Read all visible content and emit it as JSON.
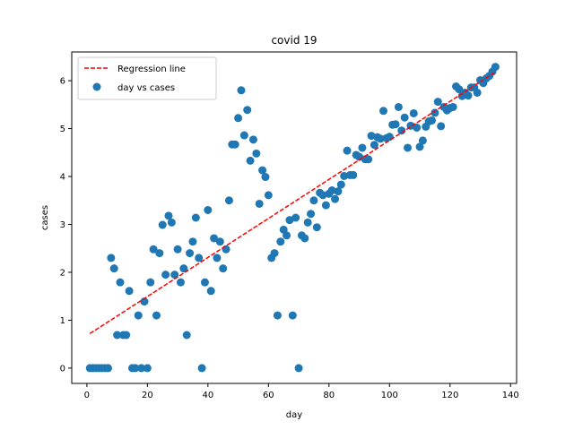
{
  "chart_data": {
    "type": "scatter",
    "title": "covid 19",
    "xlabel": "day",
    "ylabel": "cases",
    "xlim": [
      -5,
      142
    ],
    "ylim": [
      -0.32,
      6.6
    ],
    "xticks": [
      0,
      20,
      40,
      60,
      80,
      100,
      120,
      140
    ],
    "yticks": [
      0,
      1,
      2,
      3,
      4,
      5,
      6
    ],
    "grid": false,
    "legend": {
      "placement": "top-left",
      "entries": [
        "Regression line",
        "day vs cases"
      ]
    },
    "colors": {
      "points": "#1f77b4",
      "regression": "#ff0000"
    },
    "regression_line": {
      "name": "Regression line",
      "style": "dashed",
      "x": [
        1,
        135
      ],
      "y": [
        0.72,
        6.18
      ]
    },
    "series": [
      {
        "name": "day vs cases",
        "points": [
          [
            1,
            0
          ],
          [
            2,
            0
          ],
          [
            3,
            0
          ],
          [
            4,
            0
          ],
          [
            5,
            0
          ],
          [
            6,
            0
          ],
          [
            7,
            0
          ],
          [
            8,
            2.3
          ],
          [
            9,
            2.08
          ],
          [
            10,
            0.69
          ],
          [
            11,
            1.79
          ],
          [
            12,
            0.69
          ],
          [
            13,
            0.69
          ],
          [
            14,
            1.61
          ],
          [
            15,
            0
          ],
          [
            16,
            0
          ],
          [
            17,
            1.1
          ],
          [
            18,
            0
          ],
          [
            19,
            1.39
          ],
          [
            20,
            0
          ],
          [
            21,
            1.79
          ],
          [
            22,
            2.48
          ],
          [
            23,
            1.1
          ],
          [
            24,
            2.4
          ],
          [
            25,
            2.99
          ],
          [
            26,
            1.95
          ],
          [
            27,
            3.18
          ],
          [
            28,
            3.04
          ],
          [
            29,
            1.95
          ],
          [
            30,
            2.48
          ],
          [
            31,
            1.79
          ],
          [
            32,
            2.08
          ],
          [
            33,
            0.69
          ],
          [
            34,
            2.4
          ],
          [
            35,
            2.64
          ],
          [
            36,
            3.14
          ],
          [
            37,
            2.3
          ],
          [
            38,
            0
          ],
          [
            39,
            1.79
          ],
          [
            40,
            3.3
          ],
          [
            41,
            1.61
          ],
          [
            42,
            2.71
          ],
          [
            43,
            2.3
          ],
          [
            44,
            2.64
          ],
          [
            45,
            2.08
          ],
          [
            46,
            2.48
          ],
          [
            47,
            3.5
          ],
          [
            48,
            4.67
          ],
          [
            49,
            4.67
          ],
          [
            50,
            5.22
          ],
          [
            51,
            5.8
          ],
          [
            52,
            4.86
          ],
          [
            53,
            5.39
          ],
          [
            54,
            4.33
          ],
          [
            55,
            4.77
          ],
          [
            56,
            4.48
          ],
          [
            57,
            3.43
          ],
          [
            58,
            4.13
          ],
          [
            59,
            3.99
          ],
          [
            60,
            3.61
          ],
          [
            61,
            2.3
          ],
          [
            62,
            2.4
          ],
          [
            63,
            1.1
          ],
          [
            64,
            2.64
          ],
          [
            65,
            2.89
          ],
          [
            66,
            2.77
          ],
          [
            67,
            3.09
          ],
          [
            68,
            1.1
          ],
          [
            69,
            3.14
          ],
          [
            70,
            0
          ],
          [
            71,
            2.77
          ],
          [
            72,
            2.71
          ],
          [
            73,
            3.04
          ],
          [
            74,
            3.22
          ],
          [
            75,
            3.5
          ],
          [
            76,
            2.94
          ],
          [
            77,
            3.66
          ],
          [
            78,
            3.61
          ],
          [
            79,
            3.4
          ],
          [
            80,
            3.64
          ],
          [
            81,
            3.71
          ],
          [
            82,
            3.53
          ],
          [
            83,
            3.69
          ],
          [
            84,
            3.83
          ],
          [
            85,
            4.01
          ],
          [
            86,
            4.54
          ],
          [
            87,
            4.03
          ],
          [
            88,
            4.03
          ],
          [
            89,
            4.45
          ],
          [
            90,
            4.41
          ],
          [
            91,
            4.6
          ],
          [
            92,
            4.36
          ],
          [
            93,
            4.36
          ],
          [
            94,
            4.85
          ],
          [
            95,
            4.66
          ],
          [
            96,
            4.82
          ],
          [
            97,
            4.79
          ],
          [
            98,
            5.37
          ],
          [
            99,
            4.8
          ],
          [
            100,
            4.83
          ],
          [
            101,
            5.08
          ],
          [
            102,
            5.09
          ],
          [
            103,
            5.45
          ],
          [
            104,
            4.96
          ],
          [
            105,
            5.23
          ],
          [
            106,
            4.6
          ],
          [
            107,
            5.06
          ],
          [
            108,
            5.32
          ],
          [
            109,
            5.02
          ],
          [
            110,
            4.62
          ],
          [
            111,
            4.75
          ],
          [
            112,
            5.04
          ],
          [
            113,
            5.15
          ],
          [
            114,
            5.17
          ],
          [
            115,
            5.33
          ],
          [
            116,
            5.56
          ],
          [
            117,
            5.05
          ],
          [
            118,
            5.45
          ],
          [
            119,
            5.38
          ],
          [
            120,
            5.43
          ],
          [
            121,
            5.45
          ],
          [
            122,
            5.88
          ],
          [
            123,
            5.82
          ],
          [
            124,
            5.68
          ],
          [
            125,
            5.75
          ],
          [
            126,
            5.69
          ],
          [
            127,
            5.86
          ],
          [
            128,
            5.86
          ],
          [
            129,
            5.75
          ],
          [
            130,
            6.01
          ],
          [
            131,
            5.95
          ],
          [
            132,
            6.05
          ],
          [
            133,
            6.1
          ],
          [
            134,
            6.19
          ],
          [
            135,
            6.29
          ]
        ]
      }
    ]
  }
}
